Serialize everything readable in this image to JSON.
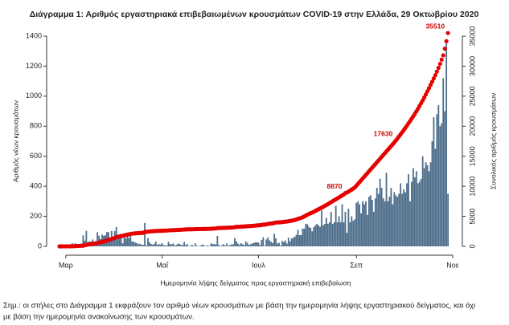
{
  "chart_data": {
    "type": "bar",
    "title": "Διάγραμμα 1: Αριθμός εργαστηριακά επιβεβαιωμένων κρουσμάτων COVID-19 στην Ελλάδα, 29 Οκτωβρίου 2020",
    "xlabel": "Ημερομηνία λήψης δείγματος προς εργαστηριακή επιβεβαίωση",
    "ylabel": "Αριθμός νέων κρουσμάτων",
    "y2label": "Συνολικός αριθμός κρουσμάτων",
    "note": [
      "Σημ.: οι στήλες στο Διάγραμμα 1 εκφράζουν τον αριθμό νέων κρουσμάτων με βάση την ημερομηνία λήψης εργαστηριακού δείγματος, και όχι",
      "με βάση την ημερομηνία ανακοίνωσης των κρουσμάτων."
    ],
    "categories": [
      null,
      null,
      null,
      null,
      "Μαρ",
      null,
      null,
      null,
      null,
      null,
      null,
      null,
      null,
      null,
      null,
      null,
      null,
      null,
      null,
      null,
      null,
      null,
      null,
      null,
      null,
      null,
      null,
      null,
      null,
      null,
      null,
      null,
      null,
      null,
      null,
      null,
      null,
      null,
      null,
      null,
      null,
      null,
      null,
      null,
      null,
      null,
      null,
      null,
      null,
      null,
      null,
      null,
      null,
      null,
      null,
      null,
      null,
      null,
      null,
      null,
      null,
      null,
      null,
      null,
      null,
      "Μαΐ",
      null,
      null,
      null,
      null,
      null,
      null,
      null,
      null,
      null,
      null,
      null,
      null,
      null,
      null,
      null,
      null,
      null,
      null,
      null,
      null,
      null,
      null,
      null,
      null,
      null,
      null,
      null,
      null,
      null,
      null,
      null,
      null,
      null,
      null,
      null,
      null,
      null,
      null,
      null,
      null,
      null,
      null,
      null,
      null,
      null,
      null,
      null,
      null,
      null,
      null,
      null,
      null,
      null,
      null,
      null,
      null,
      null,
      null,
      null,
      null,
      "Ιουλ",
      null,
      null,
      null,
      null,
      null,
      null,
      null,
      null,
      null,
      null,
      null,
      null,
      null,
      null,
      null,
      null,
      null,
      null,
      null,
      null,
      null,
      null,
      null,
      null,
      null,
      null,
      null,
      null,
      null,
      null,
      null,
      null,
      null,
      null,
      null,
      null,
      null,
      null,
      null,
      null,
      null,
      null,
      null,
      null,
      null,
      null,
      null,
      null,
      null,
      null,
      null,
      null,
      null,
      null,
      null,
      null,
      null,
      null,
      null,
      null,
      null,
      "Σεπ",
      null,
      null,
      null,
      null,
      null,
      null,
      null,
      null,
      null,
      null,
      null,
      null,
      null,
      null,
      null,
      null,
      null,
      null,
      null,
      null,
      null,
      null,
      null,
      null,
      null,
      null,
      null,
      null,
      null,
      null,
      null,
      null,
      null,
      null,
      null,
      null,
      null,
      null,
      null,
      null,
      null,
      null,
      null,
      null,
      null,
      null,
      null,
      null,
      null,
      null,
      null,
      null,
      null,
      null,
      null,
      null,
      null,
      null,
      null,
      null,
      "Νοε"
    ],
    "series": [
      {
        "type": "bar",
        "color": "#4d6d8a",
        "values": [
          1,
          2,
          1,
          3,
          0,
          0,
          2,
          1,
          21,
          14,
          21,
          7,
          16,
          10,
          18,
          73,
          38,
          103,
          21,
          35,
          31,
          46,
          31,
          35,
          94,
          71,
          48,
          78,
          71,
          74,
          95,
          95,
          56,
          102,
          60,
          101,
          129,
          69,
          60,
          62,
          20,
          77,
          52,
          71,
          56,
          70,
          33,
          31,
          25,
          22,
          15,
          17,
          11,
          10,
          156,
          7,
          55,
          27,
          16,
          11,
          17,
          32,
          10,
          15,
          12,
          21,
          8,
          6,
          6,
          31,
          15,
          13,
          19,
          6,
          10,
          18,
          16,
          10,
          10,
          30,
          9,
          15,
          2,
          4,
          10,
          3,
          20,
          3,
          2,
          4,
          10,
          11,
          3,
          3,
          6,
          2,
          20,
          15,
          15,
          13,
          69,
          9,
          2,
          8,
          15,
          5,
          20,
          4,
          9,
          13,
          14,
          55,
          34,
          19,
          10,
          21,
          15,
          8,
          33,
          23,
          10,
          14,
          19,
          23,
          26,
          28,
          25,
          8,
          43,
          60,
          4,
          46,
          60,
          40,
          31,
          23,
          84,
          54,
          19,
          24,
          5,
          36,
          29,
          39,
          19,
          58,
          34,
          52,
          57,
          65,
          76,
          110,
          75,
          75,
          118,
          118,
          150,
          147,
          130,
          123,
          100,
          127,
          140,
          150,
          140,
          130,
          240,
          140,
          150,
          190,
          150,
          160,
          230,
          150,
          160,
          270,
          160,
          200,
          160,
          280,
          160,
          230,
          90,
          250,
          160,
          200,
          170,
          180,
          290,
          300,
          280,
          220,
          300,
          280,
          300,
          210,
          330,
          340,
          310,
          230,
          320,
          390,
          350,
          450,
          390,
          320,
          300,
          490,
          300,
          330,
          390,
          280,
          360,
          340,
          330,
          350,
          420,
          350,
          380,
          360,
          420,
          480,
          300,
          430,
          520,
          460,
          500,
          420,
          430,
          450,
          600,
          520,
          560,
          540,
          500,
          560,
          700,
          860,
          650,
          880,
          940,
          800,
          820,
          1120,
          900,
          1350,
          350,
          null,
          null,
          null
        ]
      },
      {
        "type": "scatter",
        "axis": "y2",
        "color": "#e60000",
        "values": [
          1,
          3,
          4,
          7,
          7,
          7,
          7,
          9,
          10,
          31,
          45,
          66,
          73,
          89,
          99,
          117,
          190,
          228,
          331,
          352,
          387,
          418,
          464,
          495,
          530,
          624,
          695,
          743,
          821,
          892,
          966,
          1061,
          1156,
          1212,
          1314,
          1415,
          1544,
          1613,
          1673,
          1735,
          1755,
          1832,
          1884,
          1955,
          2011,
          2081,
          2114,
          2145,
          2170,
          2192,
          2207,
          2224,
          2235,
          2245,
          2401,
          2408,
          2463,
          2490,
          2506,
          2517,
          2534,
          2566,
          2576,
          2591,
          2591,
          2612,
          2620,
          2626,
          2632,
          2663,
          2678,
          2691,
          2710,
          2716,
          2726,
          2744,
          2760,
          2770,
          2780,
          2810,
          2819,
          2834,
          2836,
          2840,
          2850,
          2853,
          2873,
          2876,
          2878,
          2882,
          2892,
          2903,
          2906,
          2909,
          2915,
          2917,
          2937,
          2952,
          2967,
          2980,
          3049,
          3058,
          3060,
          3068,
          3083,
          3088,
          3108,
          3112,
          3121,
          3134,
          3148,
          3203,
          3237,
          3256,
          3266,
          3287,
          3302,
          3310,
          3343,
          3366,
          3376,
          3390,
          3409,
          3432,
          3458,
          3486,
          3511,
          3519,
          3562,
          3622,
          3626,
          3672,
          3732,
          3772,
          3803,
          3826,
          3910,
          3964,
          3983,
          4007,
          4012,
          4048,
          4077,
          4116,
          4135,
          4193,
          4227,
          4279,
          4336,
          4401,
          4477,
          4587,
          4662,
          4737,
          4855,
          4973,
          5123,
          5270,
          5400,
          5523,
          5623,
          5750,
          5890,
          6040,
          6180,
          6310,
          6450,
          6590,
          6740,
          6890,
          7040,
          7200,
          7370,
          7520,
          7680,
          7840,
          8000,
          8160,
          8320,
          8480,
          8640,
          8870,
          8960,
          9120,
          9280,
          9450,
          9620,
          9800,
          10100,
          10400,
          10700,
          11000,
          11300,
          11600,
          11900,
          12200,
          12500,
          12800,
          13100,
          13400,
          13700,
          14000,
          14300,
          14600,
          14900,
          15200,
          15500,
          15800,
          16100,
          16400,
          16700,
          17000,
          17300,
          17630,
          17950,
          18300,
          18650,
          19000,
          19350,
          19720,
          20100,
          20480,
          20860,
          21250,
          21650,
          22050,
          22480,
          22920,
          23380,
          23840,
          24300,
          24800,
          25300,
          25820,
          26340,
          26880,
          27400,
          27950,
          28500,
          29100,
          29720,
          30380,
          31080,
          31800,
          32900,
          34150,
          35510,
          null,
          null,
          null
        ],
        "value_labels": [
          null,
          null,
          null,
          null,
          null,
          null,
          null,
          null,
          null,
          null,
          null,
          null,
          null,
          null,
          null,
          null,
          null,
          null,
          null,
          null,
          null,
          null,
          null,
          null,
          null,
          null,
          null,
          null,
          null,
          null,
          null,
          null,
          null,
          null,
          null,
          null,
          null,
          null,
          null,
          null,
          null,
          null,
          null,
          null,
          null,
          null,
          null,
          null,
          null,
          null,
          null,
          null,
          null,
          null,
          null,
          null,
          null,
          null,
          null,
          null,
          null,
          null,
          null,
          null,
          null,
          null,
          null,
          null,
          null,
          null,
          null,
          null,
          null,
          null,
          null,
          null,
          null,
          null,
          null,
          null,
          null,
          null,
          null,
          null,
          null,
          null,
          null,
          null,
          null,
          null,
          null,
          null,
          null,
          null,
          null,
          null,
          null,
          null,
          null,
          null,
          null,
          null,
          null,
          null,
          null,
          null,
          null,
          null,
          null,
          null,
          null,
          null,
          null,
          null,
          null,
          null,
          null,
          null,
          null,
          null,
          null,
          null,
          null,
          null,
          null,
          null,
          null,
          null,
          null,
          null,
          null,
          null,
          null,
          null,
          null,
          null,
          null,
          null,
          null,
          null,
          null,
          null,
          null,
          null,
          null,
          null,
          null,
          null,
          null,
          null,
          null,
          null,
          null,
          null,
          null,
          null,
          null,
          null,
          null,
          null,
          null,
          null,
          null,
          null,
          null,
          null,
          null,
          null,
          null,
          null,
          null,
          null,
          null,
          null,
          null,
          null,
          null,
          null,
          null,
          null,
          null,
          "8870",
          null,
          null,
          null,
          null,
          null,
          null,
          null,
          null,
          null,
          null,
          null,
          null,
          null,
          null,
          null,
          null,
          null,
          null,
          null,
          null,
          null,
          null,
          null,
          null,
          null,
          null,
          null,
          null,
          null,
          null,
          null,
          "17630",
          null,
          null,
          null,
          null,
          null,
          null,
          null,
          null,
          null,
          null,
          null,
          null,
          null,
          null,
          null,
          null,
          null,
          null,
          null,
          null,
          null,
          null,
          null,
          null,
          null,
          null,
          null,
          null,
          null,
          null,
          null,
          null,
          "35510",
          null,
          null,
          null
        ]
      }
    ],
    "ylim": [
      0,
      1400
    ],
    "yticks": [
      0,
      200,
      400,
      600,
      800,
      1000,
      1200,
      1400
    ],
    "y2lim": [
      0,
      35000
    ],
    "y2ticks": [
      0,
      5000,
      10000,
      15000,
      20000,
      25000,
      30000,
      35000
    ]
  }
}
